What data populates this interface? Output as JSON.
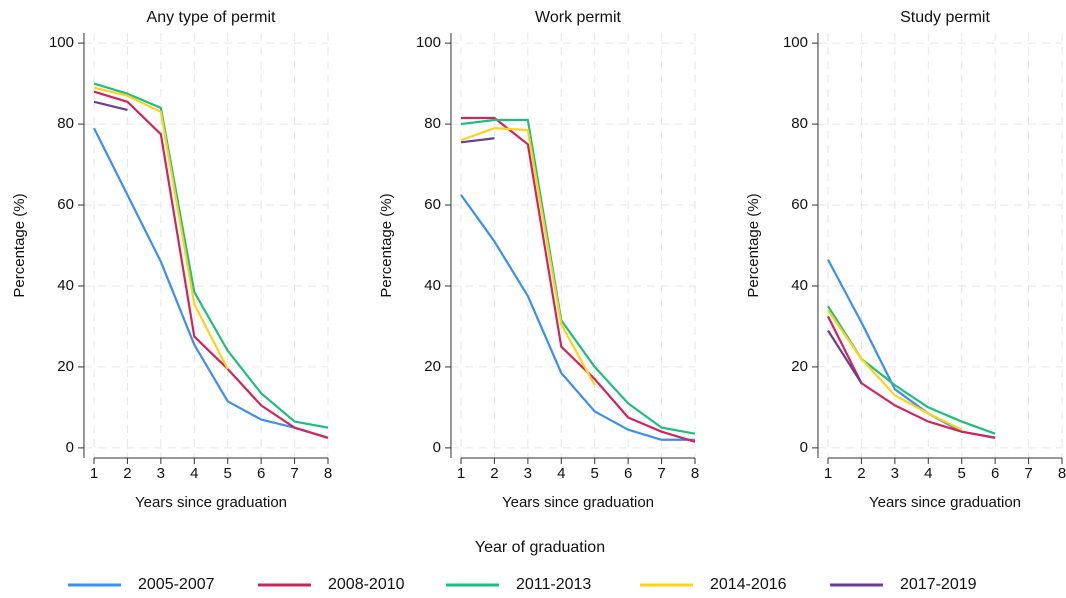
{
  "chart_data": [
    {
      "type": "line",
      "title": "Any type of permit",
      "xlabel": "Years since graduation",
      "ylabel": "Percentage (%)",
      "x": [
        1,
        2,
        3,
        4,
        5,
        6,
        7,
        8
      ],
      "xlim": [
        0.7,
        8
      ],
      "xticks": [
        1,
        2,
        3,
        4,
        5,
        6,
        7,
        8
      ],
      "ylim": [
        -2.5,
        102.5
      ],
      "yticks": [
        0,
        20,
        40,
        60,
        80,
        100
      ],
      "grid": true,
      "series": [
        {
          "name": "2005-2007",
          "color": "#3a8ff0",
          "values": [
            79,
            62.5,
            46,
            25.5,
            11.5,
            7,
            5,
            2.5
          ]
        },
        {
          "name": "2008-2010",
          "color": "#d2245b",
          "values": [
            88,
            85.5,
            77.5,
            27.5,
            19.5,
            10.5,
            5,
            2.5
          ]
        },
        {
          "name": "2011-2013",
          "color": "#1ebf7e",
          "values": [
            90,
            87.5,
            84,
            38.5,
            24,
            13.5,
            6.5,
            5
          ]
        },
        {
          "name": "2014-2016",
          "color": "#ffd21a",
          "values": [
            89,
            87,
            83,
            35.5,
            19.5,
            null,
            null,
            null
          ]
        },
        {
          "name": "2017-2019",
          "color": "#6a3d9a",
          "values": [
            85.5,
            83.5,
            null,
            null,
            null,
            null,
            null,
            null
          ]
        }
      ]
    },
    {
      "type": "line",
      "title": "Work permit",
      "xlabel": "Years since graduation",
      "ylabel": "Percentage (%)",
      "x": [
        1,
        2,
        3,
        4,
        5,
        6,
        7,
        8
      ],
      "xlim": [
        0.7,
        8
      ],
      "xticks": [
        1,
        2,
        3,
        4,
        5,
        6,
        7,
        8
      ],
      "ylim": [
        -2.5,
        102.5
      ],
      "yticks": [
        0,
        20,
        40,
        60,
        80,
        100
      ],
      "grid": true,
      "series": [
        {
          "color": "#3a8ff0",
          "values": [
            62.5,
            51,
            37.5,
            18.5,
            9,
            4.5,
            2,
            2
          ]
        },
        {
          "color": "#d2245b",
          "values": [
            81.5,
            81.5,
            75,
            25,
            17,
            7.5,
            4,
            1.5
          ]
        },
        {
          "color": "#1ebf7e",
          "values": [
            80,
            81,
            81,
            31.5,
            20,
            11,
            5,
            3.5
          ]
        },
        {
          "color": "#ffd21a",
          "values": [
            76,
            79,
            78.5,
            30.5,
            15.5,
            null,
            null,
            null
          ]
        },
        {
          "color": "#6a3d9a",
          "values": [
            75.5,
            76.5,
            null,
            null,
            null,
            null,
            null,
            null
          ]
        }
      ]
    },
    {
      "type": "line",
      "title": "Study permit",
      "xlabel": "Years since graduation",
      "ylabel": "Percentage (%)",
      "x": [
        1,
        2,
        3,
        4,
        5,
        6,
        7,
        8
      ],
      "xlim": [
        0.7,
        8
      ],
      "xticks": [
        1,
        2,
        3,
        4,
        5,
        6,
        7,
        8
      ],
      "ylim": [
        -2.5,
        102.5
      ],
      "yticks": [
        0,
        20,
        40,
        60,
        80,
        100
      ],
      "grid": true,
      "series": [
        {
          "color": "#3a8ff0",
          "values": [
            46.5,
            31,
            14.5,
            8.5,
            4,
            2.5,
            null,
            null
          ]
        },
        {
          "color": "#d2245b",
          "values": [
            32.5,
            16,
            10.5,
            6.5,
            4,
            2.5,
            null,
            null
          ]
        },
        {
          "color": "#1ebf7e",
          "values": [
            35,
            22,
            15.5,
            10,
            6.5,
            3.5,
            null,
            null
          ]
        },
        {
          "color": "#ffd21a",
          "values": [
            34,
            22,
            13,
            8.5,
            4.5,
            null,
            null,
            null
          ]
        },
        {
          "color": "#6a3d9a",
          "values": [
            29,
            16,
            null,
            null,
            null,
            null,
            null,
            null
          ]
        }
      ]
    }
  ],
  "legend_title": "Year of graduation"
}
